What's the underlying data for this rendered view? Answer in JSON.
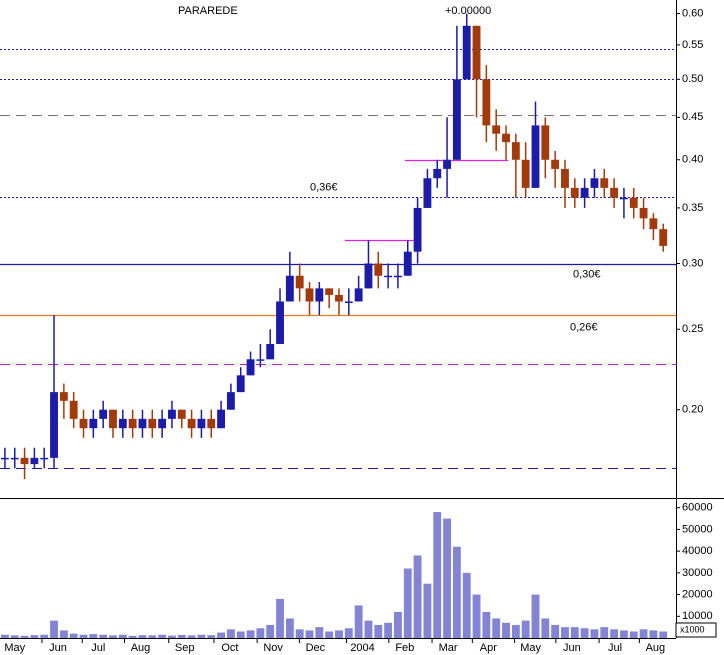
{
  "chart_data": {
    "type": "candlestick",
    "title": "PARAREDE",
    "subtitle": "+0.00000",
    "x": [
      0,
      1,
      2,
      3,
      4,
      5,
      6,
      7,
      8,
      9,
      10,
      11,
      12,
      13,
      14,
      15,
      16,
      17,
      18,
      19,
      20,
      21,
      22,
      23,
      24,
      25,
      26,
      27,
      28,
      29,
      30,
      31,
      32,
      33,
      34,
      35,
      36,
      37,
      38,
      39,
      40,
      41,
      42,
      43,
      44,
      45,
      46,
      47,
      48,
      49,
      50,
      51,
      52,
      53,
      54,
      55,
      56,
      57,
      58,
      59,
      60,
      61,
      62,
      63,
      64,
      65,
      66,
      67
    ],
    "open": [
      0.175,
      0.175,
      0.175,
      0.172,
      0.175,
      0.175,
      0.21,
      0.205,
      0.195,
      0.19,
      0.195,
      0.2,
      0.19,
      0.195,
      0.19,
      0.195,
      0.19,
      0.195,
      0.2,
      0.195,
      0.19,
      0.195,
      0.19,
      0.2,
      0.21,
      0.22,
      0.23,
      0.23,
      0.24,
      0.27,
      0.29,
      0.28,
      0.27,
      0.28,
      0.275,
      0.27,
      0.27,
      0.28,
      0.3,
      0.29,
      0.29,
      0.29,
      0.31,
      0.35,
      0.38,
      0.39,
      0.4,
      0.5,
      0.58,
      0.5,
      0.44,
      0.43,
      0.42,
      0.4,
      0.37,
      0.44,
      0.4,
      0.39,
      0.37,
      0.36,
      0.37,
      0.38,
      0.37,
      0.36,
      0.36,
      0.35,
      0.34,
      0.33
    ],
    "high": [
      0.18,
      0.18,
      0.18,
      0.18,
      0.18,
      0.26,
      0.215,
      0.21,
      0.2,
      0.2,
      0.205,
      0.2,
      0.2,
      0.2,
      0.2,
      0.2,
      0.2,
      0.205,
      0.2,
      0.2,
      0.2,
      0.2,
      0.205,
      0.215,
      0.225,
      0.235,
      0.24,
      0.25,
      0.28,
      0.31,
      0.3,
      0.285,
      0.285,
      0.28,
      0.28,
      0.28,
      0.29,
      0.32,
      0.31,
      0.3,
      0.3,
      0.32,
      0.36,
      0.39,
      0.4,
      0.45,
      0.58,
      0.6,
      0.58,
      0.52,
      0.46,
      0.44,
      0.43,
      0.42,
      0.47,
      0.45,
      0.41,
      0.4,
      0.38,
      0.38,
      0.39,
      0.39,
      0.38,
      0.37,
      0.37,
      0.36,
      0.345,
      0.335
    ],
    "low": [
      0.17,
      0.17,
      0.165,
      0.17,
      0.17,
      0.17,
      0.195,
      0.19,
      0.185,
      0.185,
      0.19,
      0.185,
      0.185,
      0.185,
      0.185,
      0.185,
      0.185,
      0.19,
      0.19,
      0.185,
      0.185,
      0.185,
      0.19,
      0.2,
      0.21,
      0.22,
      0.225,
      0.23,
      0.24,
      0.27,
      0.27,
      0.26,
      0.26,
      0.265,
      0.26,
      0.26,
      0.27,
      0.28,
      0.28,
      0.28,
      0.28,
      0.29,
      0.3,
      0.35,
      0.37,
      0.36,
      0.4,
      0.5,
      0.45,
      0.42,
      0.41,
      0.4,
      0.36,
      0.36,
      0.37,
      0.38,
      0.37,
      0.35,
      0.35,
      0.35,
      0.36,
      0.36,
      0.35,
      0.34,
      0.34,
      0.33,
      0.32,
      0.31
    ],
    "close": [
      0.175,
      0.175,
      0.172,
      0.175,
      0.175,
      0.21,
      0.205,
      0.195,
      0.19,
      0.195,
      0.2,
      0.19,
      0.195,
      0.19,
      0.195,
      0.19,
      0.195,
      0.2,
      0.195,
      0.19,
      0.195,
      0.19,
      0.2,
      0.21,
      0.22,
      0.23,
      0.23,
      0.24,
      0.27,
      0.29,
      0.28,
      0.27,
      0.28,
      0.275,
      0.27,
      0.27,
      0.28,
      0.3,
      0.29,
      0.29,
      0.29,
      0.31,
      0.35,
      0.38,
      0.39,
      0.4,
      0.5,
      0.58,
      0.5,
      0.44,
      0.43,
      0.42,
      0.4,
      0.37,
      0.44,
      0.4,
      0.39,
      0.37,
      0.36,
      0.37,
      0.38,
      0.37,
      0.36,
      0.36,
      0.35,
      0.34,
      0.33,
      0.315
    ],
    "volume": [
      1500,
      1200,
      1000,
      1300,
      1500,
      8000,
      3500,
      2000,
      1500,
      1800,
      1500,
      1200,
      1500,
      1000,
      1300,
      1200,
      1500,
      1100,
      1400,
      1200,
      1500,
      1300,
      2500,
      4000,
      3000,
      3500,
      4500,
      6000,
      18000,
      9000,
      4000,
      3500,
      5000,
      3000,
      3500,
      4500,
      15000,
      8000,
      6000,
      7000,
      12000,
      32000,
      38000,
      25000,
      58000,
      55000,
      42000,
      30000,
      20000,
      12000,
      9000,
      7000,
      6000,
      8000,
      20000,
      9000,
      6000,
      5000,
      5000,
      4500,
      4000,
      5000,
      4000,
      3500,
      3000,
      4000,
      3500,
      3000
    ],
    "up_color": "#1c1ca8",
    "down_color": "#a33a0c",
    "volume_color": "#8484d4",
    "log_scale": true,
    "xlim": [
      -0.5,
      68.3
    ],
    "ylim": [
      0.157,
      0.623
    ],
    "y2lim": [
      0,
      64000
    ],
    "xticks": [
      {
        "value": 1.0,
        "label": "May"
      },
      {
        "value": 5.4,
        "label": "Jun"
      },
      {
        "value": 9.5,
        "label": "Jul"
      },
      {
        "value": 13.8,
        "label": "Aug"
      },
      {
        "value": 18.3,
        "label": "Sep"
      },
      {
        "value": 22.9,
        "label": "Oct"
      },
      {
        "value": 27.3,
        "label": "Nov"
      },
      {
        "value": 31.6,
        "label": "Dec"
      },
      {
        "value": 36.4,
        "label": "2004"
      },
      {
        "value": 40.7,
        "label": "Feb"
      },
      {
        "value": 45.1,
        "label": "Mar"
      },
      {
        "value": 49.2,
        "label": "Apr"
      },
      {
        "value": 53.5,
        "label": "May"
      },
      {
        "value": 57.7,
        "label": "Jun"
      },
      {
        "value": 62.1,
        "label": "Jul"
      },
      {
        "value": 66.2,
        "label": "Aug"
      }
    ],
    "yticks": [
      {
        "value": 0.6,
        "label": "0.60"
      },
      {
        "value": 0.55,
        "label": "0.55"
      },
      {
        "value": 0.5,
        "label": "0.50"
      },
      {
        "value": 0.45,
        "label": "0.45"
      },
      {
        "value": 0.4,
        "label": "0.40"
      },
      {
        "value": 0.35,
        "label": "0.35"
      },
      {
        "value": 0.3,
        "label": "0.30"
      },
      {
        "value": 0.25,
        "label": "0.25"
      },
      {
        "value": 0.2,
        "label": "0.20"
      }
    ],
    "y2ticks": [
      10000,
      20000,
      30000,
      40000,
      50000,
      60000
    ],
    "y2_unit": "x1000",
    "levels": [
      {
        "value": 0.544,
        "color": "#1c1ca8",
        "style": "dotted"
      },
      {
        "value": 0.5,
        "color": "#1c1ca8",
        "style": "dotted"
      },
      {
        "value": 0.453,
        "color": "#8a6a6a",
        "style": "dashed"
      },
      {
        "value": 0.361,
        "color": "#1c1ca8",
        "style": "dotted",
        "label": "0,36€",
        "label_color": "#888888"
      },
      {
        "value": 0.3,
        "color": "#1c1ca8",
        "style": "solid",
        "label": "0,30€",
        "label_color": "#1c1ca8"
      },
      {
        "value": 0.26,
        "color": "#f07a20",
        "style": "solid",
        "label": "0,26€",
        "label_color": "#d01010"
      },
      {
        "value": 0.227,
        "color": "#c020c0",
        "style": "dashed"
      },
      {
        "value": 0.17,
        "color": "#1c1ca8",
        "style": "dashed"
      }
    ],
    "segments": [
      {
        "value": 0.32,
        "from": 34.6,
        "to": 42.3,
        "color": "#e020e0"
      },
      {
        "value": 0.4,
        "from": 40.7,
        "to": 51.2,
        "color": "#e020e0"
      }
    ]
  }
}
